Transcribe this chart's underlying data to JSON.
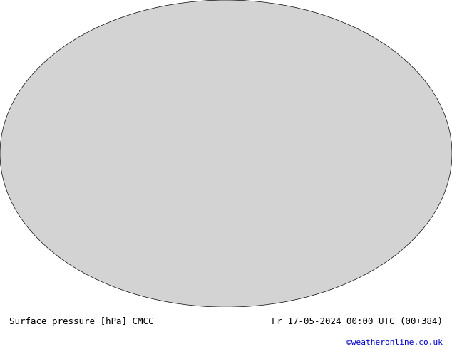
{
  "title_left": "Surface pressure [hPa] CMCC",
  "title_right": "Fr 17-05-2024 00:00 UTC (00+384)",
  "copyright": "©weatheronline.co.uk",
  "background_color": "#ffffff",
  "map_bg_color": "#d3d3d3",
  "land_color": "#c8e6c9",
  "ocean_color": "#d3d3d3",
  "contour_color_low": "#0000cc",
  "contour_color_high": "#cc0000",
  "contour_color_mid": "#000000",
  "label_fontsize": 7,
  "title_fontsize": 9,
  "copyright_color": "#0000cc"
}
